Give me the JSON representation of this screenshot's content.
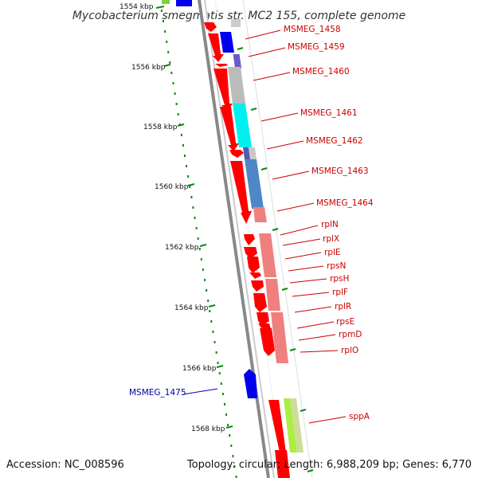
{
  "title": "Mycobacterium smegmatis str. MC2 155, complete genome",
  "footer": {
    "accession": "Accession: NC_008596",
    "topology": "Topology: circular; Length: 6,988,209 bp; Genes: 6,770"
  },
  "ticks": [
    "1554 kbp",
    "1556 kbp",
    "1558 kbp",
    "1560 kbp",
    "1562 kbp",
    "1564 kbp",
    "1566 kbp",
    "1568 kbp"
  ],
  "labels": [
    {
      "text": "MSMEG_1458",
      "color": "red"
    },
    {
      "text": "MSMEG_1459",
      "color": "red"
    },
    {
      "text": "MSMEG_1460",
      "color": "red"
    },
    {
      "text": "MSMEG_1461",
      "color": "red"
    },
    {
      "text": "MSMEG_1462",
      "color": "red"
    },
    {
      "text": "MSMEG_1463",
      "color": "red"
    },
    {
      "text": "MSMEG_1464",
      "color": "red"
    },
    {
      "text": "rplN",
      "color": "red"
    },
    {
      "text": "rplX",
      "color": "red"
    },
    {
      "text": "rplE",
      "color": "red"
    },
    {
      "text": "rpsN",
      "color": "red"
    },
    {
      "text": "rpsH",
      "color": "red"
    },
    {
      "text": "rplF",
      "color": "red"
    },
    {
      "text": "rplR",
      "color": "red"
    },
    {
      "text": "rpsE",
      "color": "red"
    },
    {
      "text": "rpmD",
      "color": "red"
    },
    {
      "text": "rplO",
      "color": "red"
    },
    {
      "text": "MSMEG_1475",
      "color": "blue"
    },
    {
      "text": "sppA",
      "color": "red"
    }
  ],
  "colors": {
    "forward_cds": "#ff0000",
    "reverse_cds": "#0000ee",
    "backbone": "#888888",
    "gc_skew_dots": "#0a8a0a",
    "label_red": "#cc0000",
    "label_blue": "#0000aa"
  }
}
